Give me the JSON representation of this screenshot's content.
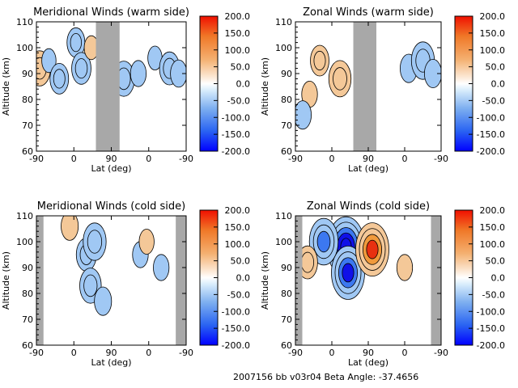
{
  "footer": "2007156 bb v03r04   Beta Angle: -37.4656",
  "colors": {
    "neg_dark": "#1010e8",
    "neg_mid": "#3c78f0",
    "neg_light": "#a0c8f4",
    "neg_pale": "#d8ecfc",
    "pos_pale": "#fce8d4",
    "pos_light": "#f4c898",
    "pos_mid": "#f09a3c",
    "pos_dark": "#e83010",
    "gap": "#a8a8a8"
  },
  "chart_data": [
    {
      "type": "heatmap",
      "title": "Meridional Winds (warm side)",
      "xlabel": "Lat (deg)",
      "ylabel": "Altitude (km)",
      "ylim": [
        60,
        110
      ],
      "x_ticks": [
        "-90",
        "0",
        "90",
        "0",
        "-90"
      ],
      "y_ticks": [
        "60",
        "70",
        "80",
        "90",
        "100",
        "110"
      ],
      "colorbar_ticks": [
        "200.0",
        "150.0",
        "100.0",
        "50.0",
        "0.0",
        "-50.0",
        "-100.0",
        "-150.0",
        "-200.0"
      ],
      "colorbar_range": [
        -200,
        200
      ],
      "data_gaps": [
        [
          53,
          110
        ]
      ],
      "features": [
        {
          "x": -82,
          "y": 92,
          "value": 70
        },
        {
          "x": -60,
          "y": 95,
          "value": -20
        },
        {
          "x": -35,
          "y": 88,
          "value": -50
        },
        {
          "x": 5,
          "y": 102,
          "value": -45
        },
        {
          "x": 18,
          "y": 92,
          "value": -55
        },
        {
          "x": 42,
          "y": 100,
          "value": 20
        },
        {
          "x": 120,
          "y": 88,
          "value": -70
        },
        {
          "x": 155,
          "y": 90,
          "value": -30
        },
        {
          "x": 195,
          "y": 96,
          "value": -20
        },
        {
          "x": 230,
          "y": 92,
          "value": -60
        },
        {
          "x": 252,
          "y": 90,
          "value": -35
        }
      ]
    },
    {
      "type": "heatmap",
      "title": "Zonal Winds (warm side)",
      "xlabel": "Lat (deg)",
      "ylabel": "Altitude (km)",
      "ylim": [
        60,
        110
      ],
      "x_ticks": [
        "-90",
        "0",
        "90",
        "0",
        "-90"
      ],
      "y_ticks": [
        "60",
        "70",
        "80",
        "90",
        "100",
        "110"
      ],
      "colorbar_ticks": [
        "200.0",
        "150.0",
        "100.0",
        "50.0",
        "0.0",
        "-50.0",
        "-100.0",
        "-150.0",
        "-200.0"
      ],
      "colorbar_range": [
        -200,
        200
      ],
      "data_gaps": [
        [
          53,
          110
        ]
      ],
      "features": [
        {
          "x": -30,
          "y": 95,
          "value": 50
        },
        {
          "x": 20,
          "y": 88,
          "value": 75
        },
        {
          "x": -55,
          "y": 82,
          "value": 30
        },
        {
          "x": -72,
          "y": 74,
          "value": -40
        },
        {
          "x": 190,
          "y": 92,
          "value": -40
        },
        {
          "x": 225,
          "y": 95,
          "value": -80
        },
        {
          "x": 250,
          "y": 90,
          "value": -40
        }
      ]
    },
    {
      "type": "heatmap",
      "title": "Meridional Winds (cold side)",
      "xlabel": "Lat (deg)",
      "ylabel": "Altitude (km)",
      "ylim": [
        60,
        110
      ],
      "x_ticks": [
        "-90",
        "0",
        "90",
        "0",
        "-90"
      ],
      "y_ticks": [
        "60",
        "70",
        "80",
        "90",
        "100",
        "110"
      ],
      "colorbar_ticks": [
        "200.0",
        "150.0",
        "100.0",
        "50.0",
        "0.0",
        "-50.0",
        "-100.0",
        "-150.0",
        "-200.0"
      ],
      "colorbar_range": [
        -200,
        200
      ],
      "data_gaps": [
        [
          -90,
          -73
        ],
        [
          245,
          270
        ]
      ],
      "features": [
        {
          "x": -10,
          "y": 106,
          "value": 40
        },
        {
          "x": 30,
          "y": 95,
          "value": -60
        },
        {
          "x": 50,
          "y": 100,
          "value": -80
        },
        {
          "x": 40,
          "y": 83,
          "value": -70
        },
        {
          "x": 70,
          "y": 77,
          "value": -40
        },
        {
          "x": 160,
          "y": 95,
          "value": -30
        },
        {
          "x": 175,
          "y": 100,
          "value": 25
        },
        {
          "x": 210,
          "y": 90,
          "value": -30
        }
      ]
    },
    {
      "type": "heatmap",
      "title": "Zonal Winds (cold side)",
      "xlabel": "Lat (deg)",
      "ylabel": "Altitude (km)",
      "ylim": [
        60,
        110
      ],
      "x_ticks": [
        "-90",
        "0",
        "90",
        "0",
        "-90"
      ],
      "y_ticks": [
        "60",
        "70",
        "80",
        "90",
        "100",
        "110"
      ],
      "colorbar_ticks": [
        "200.0",
        "150.0",
        "100.0",
        "50.0",
        "0.0",
        "-50.0",
        "-100.0",
        "-150.0",
        "-200.0"
      ],
      "colorbar_range": [
        -200,
        200
      ],
      "data_gaps": [
        [
          -90,
          -73
        ],
        [
          245,
          270
        ]
      ],
      "features": [
        {
          "x": 35,
          "y": 98,
          "value": -180
        },
        {
          "x": 40,
          "y": 88,
          "value": -150
        },
        {
          "x": -20,
          "y": 100,
          "value": -120
        },
        {
          "x": 100,
          "y": 97,
          "value": 150
        },
        {
          "x": -60,
          "y": 92,
          "value": 60
        },
        {
          "x": 180,
          "y": 90,
          "value": 30
        }
      ]
    }
  ]
}
